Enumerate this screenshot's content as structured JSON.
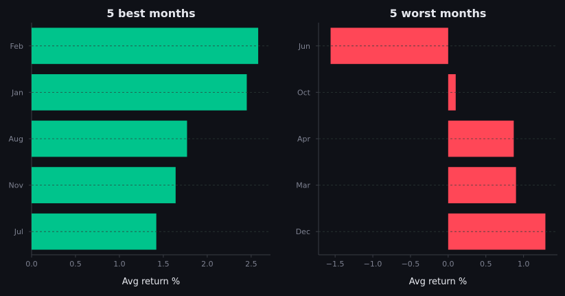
{
  "colors": {
    "background": "#0f1117",
    "best_bar": "#00c48c",
    "worst_bar": "#ff4757",
    "axis": "#3a3d45",
    "tick_label": "#7d8190",
    "text": "#e6e8ee",
    "grid": "#2e3d3a"
  },
  "chart_data": [
    {
      "type": "bar",
      "orientation": "horizontal",
      "title": "5 best months",
      "xlabel": "Avg return %",
      "ylabel": "",
      "categories": [
        "Feb",
        "Jan",
        "Aug",
        "Nov",
        "Jul"
      ],
      "values": [
        2.58,
        2.45,
        1.77,
        1.64,
        1.42
      ],
      "xlim": [
        0,
        2.72
      ],
      "xticks": [
        0,
        0.5,
        1,
        1.5,
        2,
        2.5
      ],
      "xtick_labels": [
        "0.0",
        "0.5",
        "1.0",
        "1.5",
        "2.0",
        "2.5"
      ],
      "grid": "dashed horizontal at category centers"
    },
    {
      "type": "bar",
      "orientation": "horizontal",
      "title": "5 worst months",
      "xlabel": "Avg return %",
      "ylabel": "",
      "categories": [
        "Jun",
        "Oct",
        "Apr",
        "Mar",
        "Dec"
      ],
      "values": [
        -1.56,
        0.1,
        0.87,
        0.9,
        1.29
      ],
      "xlim": [
        -1.72,
        1.45
      ],
      "xticks": [
        -1.5,
        -1,
        -0.5,
        0,
        0.5,
        1
      ],
      "xtick_labels": [
        "−1.5",
        "−1.0",
        "−0.5",
        "0.0",
        "0.5",
        "1.0"
      ],
      "grid": "dashed horizontal at category centers"
    }
  ]
}
